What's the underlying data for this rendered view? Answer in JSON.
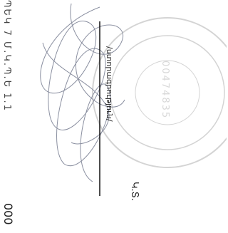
{
  "document": {
    "side_note": "ՊԵԿ 7 Մ.Կ.Պ.Ե 1.1",
    "code": "000",
    "signature_label": "/ստորագրություն/",
    "stamp_place": "Կ.Տ.",
    "stamp_number": "00474835"
  }
}
